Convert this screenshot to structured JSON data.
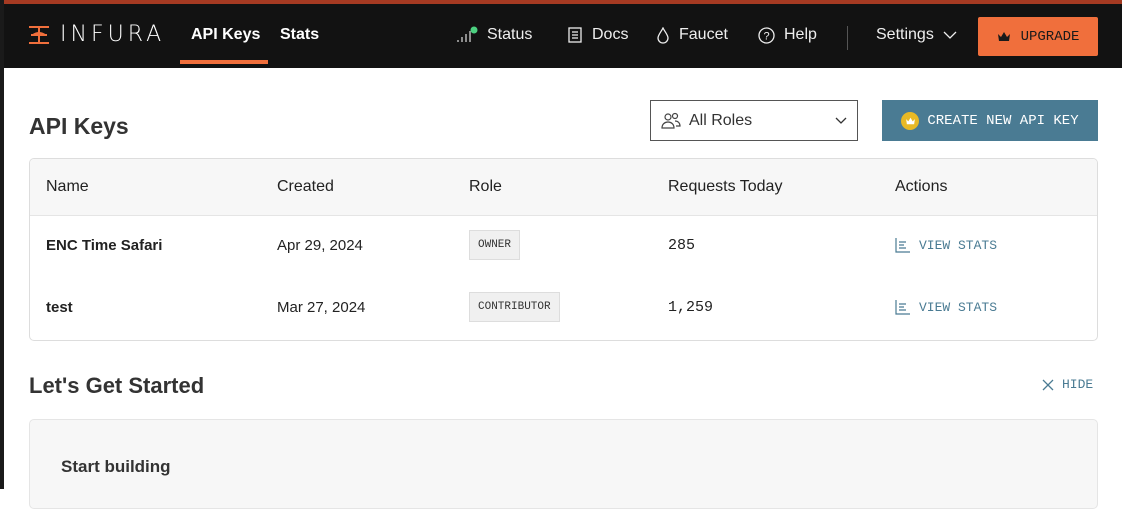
{
  "nav": {
    "logo": "INFURA",
    "links": [
      {
        "label": "API Keys",
        "active": true
      },
      {
        "label": "Stats"
      }
    ],
    "right": [
      {
        "label": "Status",
        "icon": "signal-icon"
      },
      {
        "label": "Docs",
        "icon": "book-icon"
      },
      {
        "label": "Faucet",
        "icon": "drop-icon"
      },
      {
        "label": "Help",
        "icon": "help-circle-icon"
      }
    ],
    "settings": "Settings",
    "upgrade": "UPGRADE"
  },
  "page": {
    "title": "API Keys",
    "role_filter": "All Roles",
    "create_button": "CREATE NEW API KEY"
  },
  "table": {
    "headers": [
      "Name",
      "Created",
      "Role",
      "Requests Today",
      "Actions"
    ],
    "rows": [
      {
        "name": "ENC Time Safari",
        "created": "Apr 29, 2024",
        "role": "OWNER",
        "requests": "285",
        "action": "VIEW STATS"
      },
      {
        "name": "test",
        "created": "Mar 27, 2024",
        "role": "CONTRIBUTOR",
        "requests": "1,259",
        "action": "VIEW STATS"
      }
    ]
  },
  "started": {
    "title": "Let's Get Started",
    "hide": "HIDE",
    "card_title": "Start building"
  },
  "colors": {
    "accent": "#f06f3c",
    "primary": "#4a7b93",
    "nav_bg": "#121212",
    "status_ok": "#4cd080"
  }
}
